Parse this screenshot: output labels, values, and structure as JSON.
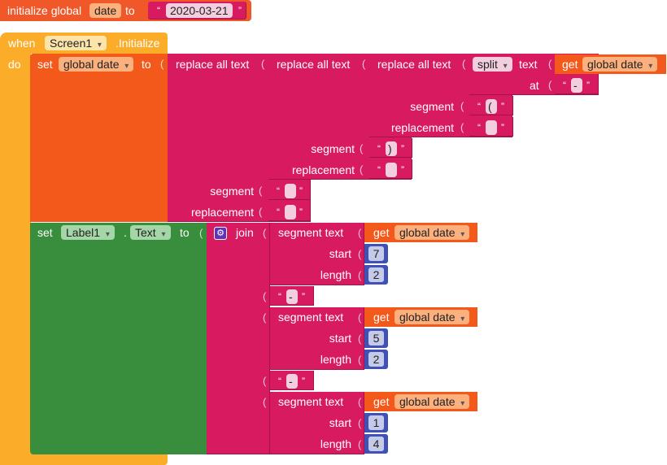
{
  "init_block": {
    "label_initialize": "initialize global",
    "var_name": "date",
    "label_to": "to",
    "value": "2020-03-21"
  },
  "event_block": {
    "label_when": "when",
    "component": "Screen1",
    "event": ".Initialize",
    "label_do": "do"
  },
  "set_global": {
    "label_set": "set",
    "var": "global date",
    "label_to": "to"
  },
  "replace": {
    "label_replace_all": "replace all text",
    "label_segment": "segment",
    "label_replacement": "replacement",
    "split_label": "split",
    "split_text_label": "text",
    "split_at_label": "at",
    "split_at_value": "-",
    "seg1": "(",
    "rep1": "",
    "seg2": ")",
    "rep2": "",
    "seg3": "",
    "rep3": ""
  },
  "get": {
    "label_get": "get",
    "var": "global date"
  },
  "set_label": {
    "label_set": "set",
    "component": "Label1",
    "dot": ".",
    "property": "Text",
    "label_to": "to"
  },
  "join": {
    "label_join": "join",
    "label_segment_text": "segment  text",
    "label_start": "start",
    "label_length": "length",
    "sep": "-",
    "seg_a_start": "7",
    "seg_a_length": "2",
    "seg_b_start": "5",
    "seg_b_length": "2",
    "seg_c_start": "1",
    "seg_c_length": "4"
  },
  "colors": {
    "variable": "#f0582a",
    "text": "#d81b60",
    "math": "#3f51b5",
    "component_setter": "#388e3c",
    "event": "#fbad2a"
  }
}
